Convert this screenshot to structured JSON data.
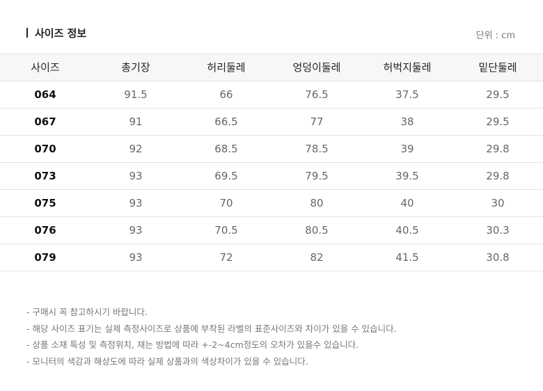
{
  "header": {
    "title": "사이즈 정보",
    "unit": "단위 : cm"
  },
  "table": {
    "columns": [
      "사이즈",
      "총기장",
      "허리둘레",
      "엉덩이둘레",
      "허벅지둘레",
      "밑단둘레"
    ],
    "rows": [
      [
        "064",
        "91.5",
        "66",
        "76.5",
        "37.5",
        "29.5"
      ],
      [
        "067",
        "91",
        "66.5",
        "77",
        "38",
        "29.5"
      ],
      [
        "070",
        "92",
        "68.5",
        "78.5",
        "39",
        "29.8"
      ],
      [
        "073",
        "93",
        "69.5",
        "79.5",
        "39.5",
        "29.8"
      ],
      [
        "075",
        "93",
        "70",
        "80",
        "40",
        "30"
      ],
      [
        "076",
        "93",
        "70.5",
        "80.5",
        "40.5",
        "30.3"
      ],
      [
        "079",
        "93",
        "72",
        "82",
        "41.5",
        "30.8"
      ]
    ]
  },
  "notes": [
    "- 구매시 꼭 참고하시기 바랍니다.",
    "- 해당 사이즈 표기는 실제 측정사이즈로 상품에 부착된 라벨의 표준사이즈와 차이가 있을 수 있습니다.",
    "- 상품 소재 특성 및 측정위치, 재는 방법에 따라 +-2~4cm정도의 오차가 있을수 있습니다.",
    "- 모니터의 색감과 해상도에 따라 실제 상품과의 색상차이가 있을 수 있습니다."
  ]
}
